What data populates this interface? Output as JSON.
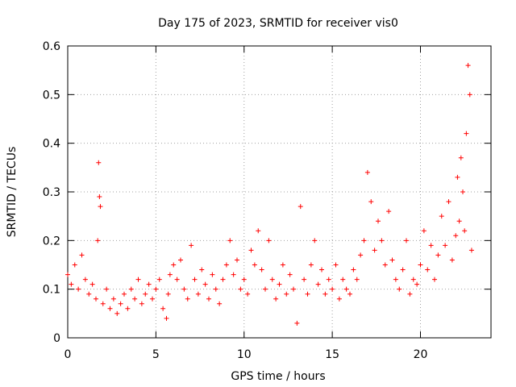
{
  "chart_data": {
    "type": "scatter",
    "title": "Day 175 of 2023, SRMTID for receiver vis0",
    "xlabel": "GPS time / hours",
    "ylabel": "SRMTID / TECUs",
    "xlim": [
      0,
      24
    ],
    "ylim": [
      0,
      0.6
    ],
    "xticks": [
      0,
      5,
      10,
      15,
      20
    ],
    "xtick_labels": [
      "0",
      "5",
      "10",
      "15",
      "20"
    ],
    "yticks": [
      0,
      0.1,
      0.2,
      0.3,
      0.4,
      0.5,
      0.6
    ],
    "ytick_labels": [
      "0",
      "0.1",
      "0.2",
      "0.3",
      "0.4",
      "0.5",
      "0.6"
    ],
    "grid": true,
    "marker": "+",
    "color": "#ff0000",
    "series": [
      {
        "name": "SRMTID",
        "x": [
          0.0,
          0.2,
          0.4,
          0.6,
          0.8,
          1.0,
          1.2,
          1.4,
          1.6,
          1.7,
          1.75,
          1.8,
          1.85,
          2.0,
          2.2,
          2.4,
          2.6,
          2.8,
          3.0,
          3.2,
          3.4,
          3.6,
          3.8,
          4.0,
          4.2,
          4.4,
          4.6,
          4.8,
          5.0,
          5.2,
          5.4,
          5.6,
          5.7,
          5.8,
          6.0,
          6.2,
          6.4,
          6.6,
          6.8,
          7.0,
          7.2,
          7.4,
          7.6,
          7.8,
          8.0,
          8.2,
          8.4,
          8.6,
          8.8,
          9.0,
          9.2,
          9.4,
          9.6,
          9.8,
          10.0,
          10.2,
          10.4,
          10.6,
          10.8,
          11.0,
          11.2,
          11.4,
          11.6,
          11.8,
          12.0,
          12.2,
          12.4,
          12.6,
          12.8,
          13.0,
          13.2,
          13.4,
          13.6,
          13.8,
          14.0,
          14.2,
          14.4,
          14.6,
          14.8,
          15.0,
          15.2,
          15.4,
          15.6,
          15.8,
          16.0,
          16.2,
          16.4,
          16.6,
          16.8,
          17.0,
          17.2,
          17.4,
          17.6,
          17.8,
          18.0,
          18.2,
          18.4,
          18.6,
          18.8,
          19.0,
          19.2,
          19.4,
          19.6,
          19.8,
          20.0,
          20.2,
          20.4,
          20.6,
          20.8,
          21.0,
          21.2,
          21.4,
          21.6,
          21.8,
          22.0,
          22.1,
          22.2,
          22.3,
          22.4,
          22.5,
          22.6,
          22.7,
          22.8,
          22.9
        ],
        "y": [
          0.13,
          0.11,
          0.15,
          0.1,
          0.17,
          0.12,
          0.09,
          0.11,
          0.08,
          0.2,
          0.36,
          0.29,
          0.27,
          0.07,
          0.1,
          0.06,
          0.08,
          0.05,
          0.07,
          0.09,
          0.06,
          0.1,
          0.08,
          0.12,
          0.07,
          0.09,
          0.11,
          0.08,
          0.1,
          0.12,
          0.06,
          0.04,
          0.09,
          0.13,
          0.15,
          0.12,
          0.16,
          0.1,
          0.08,
          0.19,
          0.12,
          0.09,
          0.14,
          0.11,
          0.08,
          0.13,
          0.1,
          0.07,
          0.12,
          0.15,
          0.2,
          0.13,
          0.16,
          0.1,
          0.12,
          0.09,
          0.18,
          0.15,
          0.22,
          0.14,
          0.1,
          0.2,
          0.12,
          0.08,
          0.11,
          0.15,
          0.09,
          0.13,
          0.1,
          0.03,
          0.27,
          0.12,
          0.09,
          0.15,
          0.2,
          0.11,
          0.14,
          0.09,
          0.12,
          0.1,
          0.15,
          0.08,
          0.12,
          0.1,
          0.09,
          0.14,
          0.12,
          0.17,
          0.2,
          0.34,
          0.28,
          0.18,
          0.24,
          0.2,
          0.15,
          0.26,
          0.16,
          0.12,
          0.1,
          0.14,
          0.2,
          0.09,
          0.12,
          0.11,
          0.15,
          0.22,
          0.14,
          0.19,
          0.12,
          0.17,
          0.25,
          0.19,
          0.28,
          0.16,
          0.21,
          0.33,
          0.24,
          0.37,
          0.3,
          0.22,
          0.42,
          0.56,
          0.5,
          0.18
        ]
      }
    ]
  }
}
